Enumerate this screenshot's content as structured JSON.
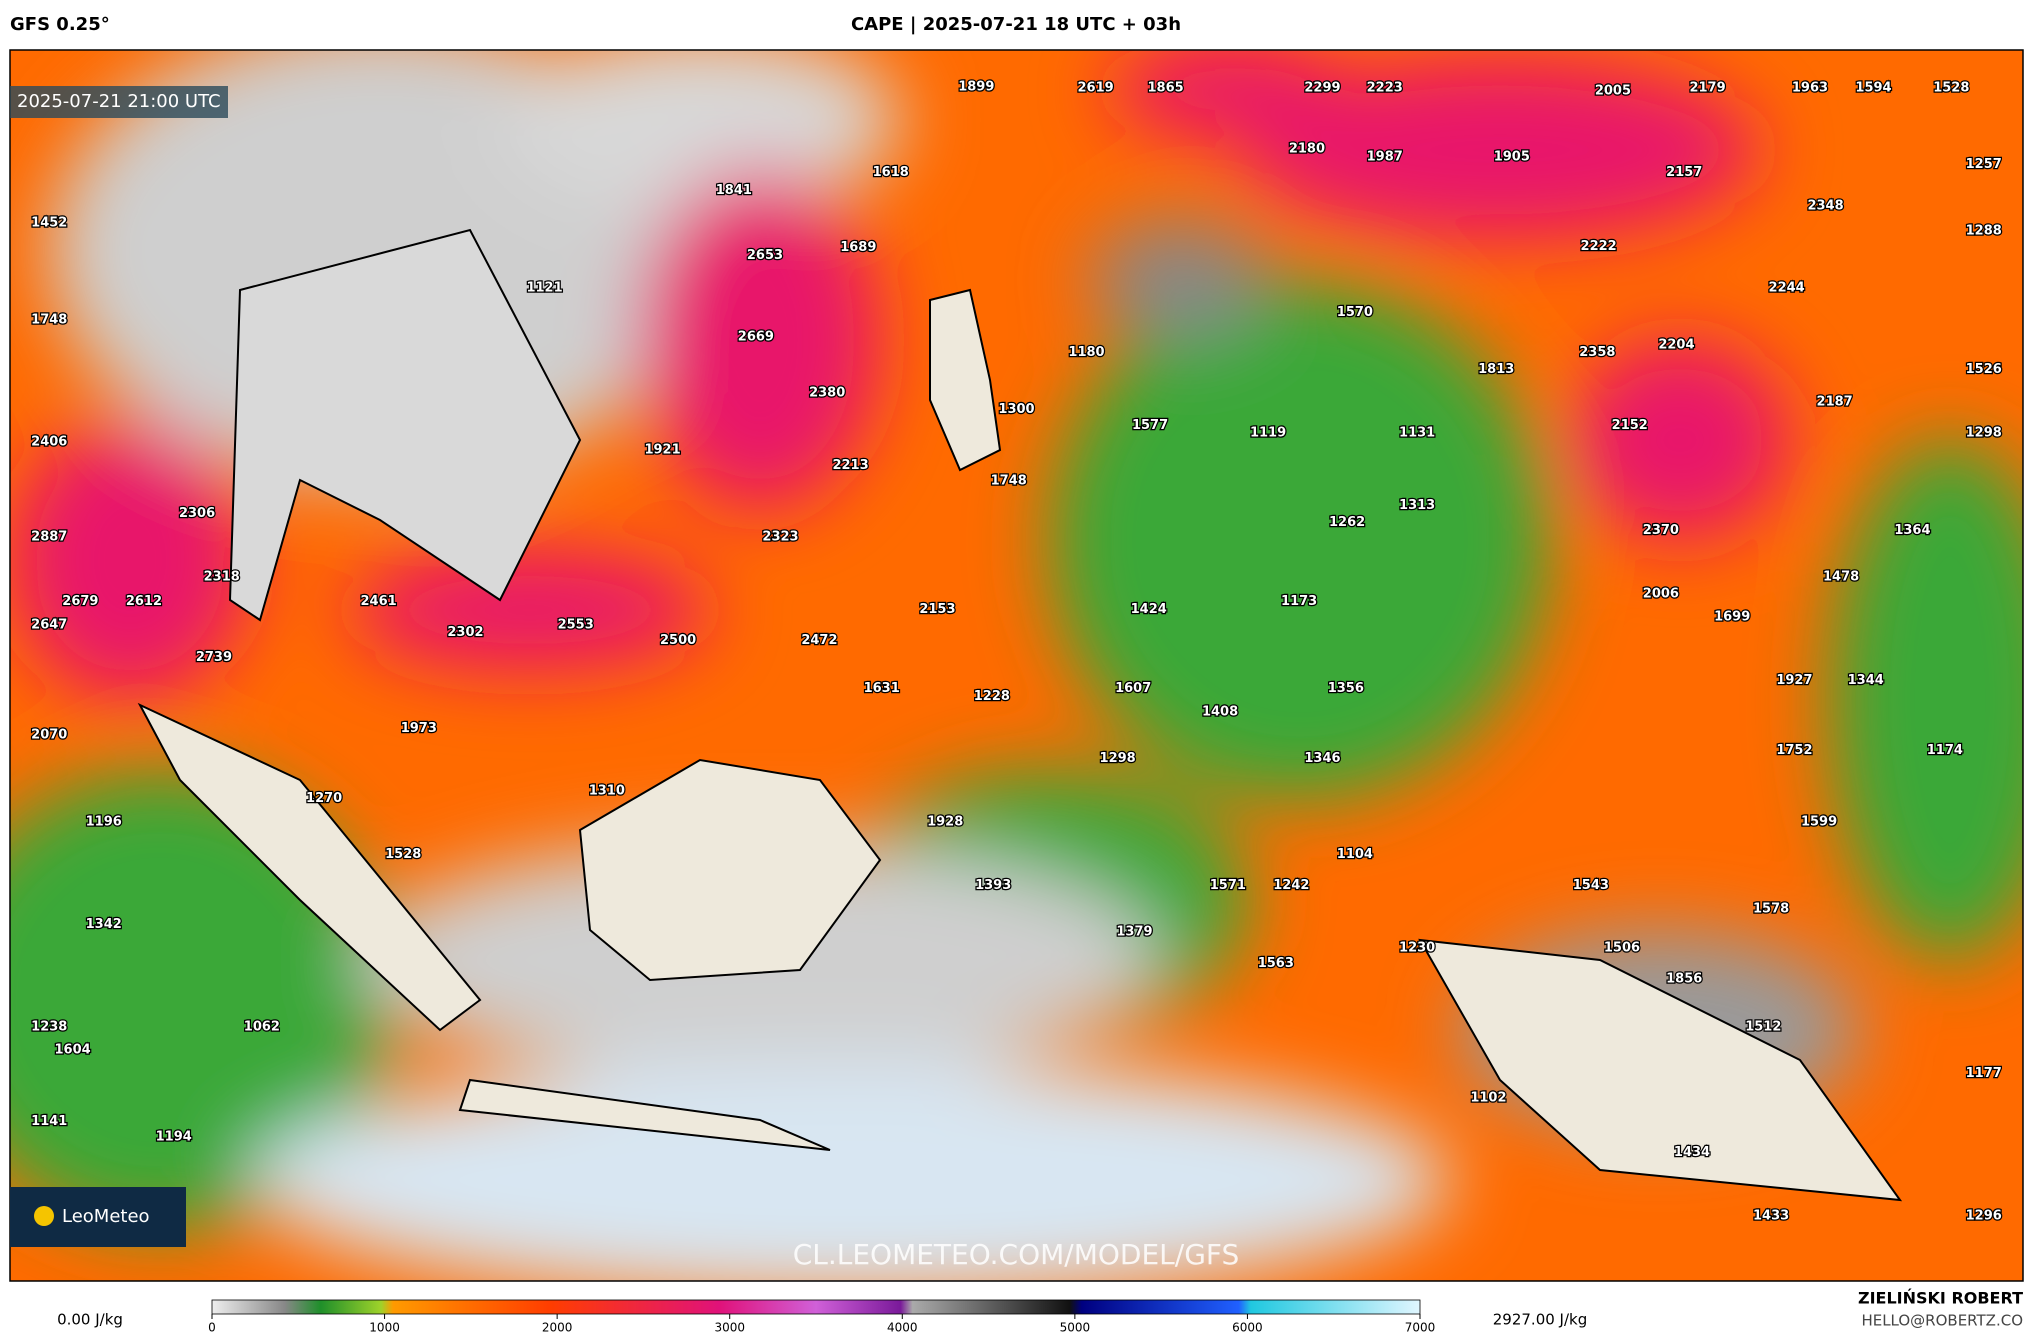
{
  "header": {
    "model": "GFS 0.25°",
    "title": "CAPE | 2025-07-21 18 UTC + 03h"
  },
  "map": {
    "valid_time": "2025-07-21 21:00 UTC",
    "watermark": "CL.LEOMETEO.COM/MODEL/GFS",
    "logo": "LeoMeteo",
    "labels": [
      1899,
      2619,
      1865,
      2299,
      2223,
      2005,
      2179,
      1963,
      1594,
      1528,
      2180,
      1987,
      1905,
      2157,
      1257,
      1452,
      1618,
      1841,
      2348,
      1288,
      2653,
      1689,
      2222,
      1121,
      2244,
      1748,
      1570,
      2669,
      1180,
      2358,
      2204,
      1813,
      1526,
      2380,
      1300,
      1577,
      1119,
      1131,
      2152,
      2187,
      1298,
      2406,
      1921,
      2213,
      1748,
      1313,
      2306,
      1262,
      2370,
      1364,
      2887,
      2323,
      2318,
      1478,
      2679,
      2612,
      2461,
      2153,
      1424,
      1173,
      2006,
      1699,
      2647,
      2302,
      2553,
      2500,
      2472,
      2739,
      1927,
      1344,
      1631,
      1228,
      1607,
      1356,
      1408,
      2070,
      1973,
      1752,
      1174,
      1346,
      1298,
      1310,
      1270,
      1196,
      1928,
      1599,
      1528,
      1104,
      1393,
      1571,
      1242,
      1543,
      1342,
      1578,
      1379,
      1230,
      1506,
      1563,
      1856,
      1238,
      1062,
      1512,
      1604,
      1177,
      1102,
      1141,
      1194,
      1434,
      1433,
      1296
    ]
  },
  "colorbar": {
    "min_label": "0.00 J/kg",
    "max_label": "2927.00 J/kg",
    "lim": [
      0,
      7000
    ],
    "ticks": [
      0,
      1000,
      2000,
      3000,
      4000,
      5000,
      6000,
      7000
    ]
  },
  "footer": {
    "author": "ZIELIŃSKI ROBERT",
    "email": "HELLO@ROBERTZ.CO"
  }
}
